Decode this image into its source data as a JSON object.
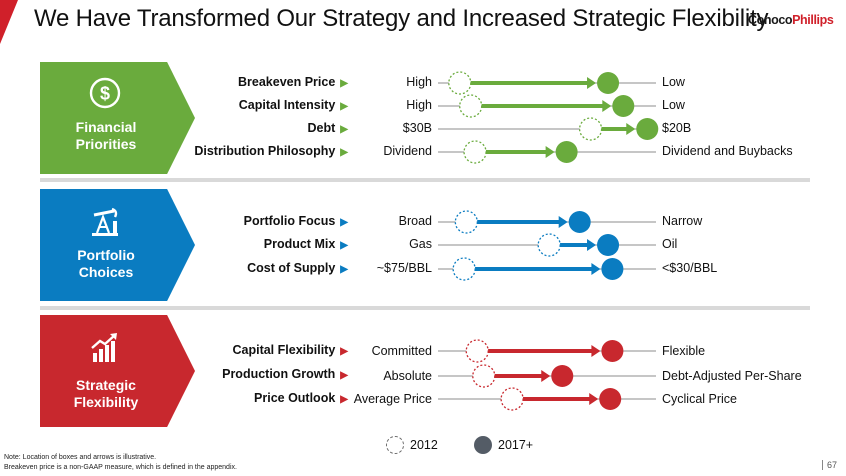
{
  "header": {
    "title": "We Have Transformed Our Strategy and Increased Strategic Flexibility",
    "logo_part1": "Conoco",
    "logo_part2": "Phillips"
  },
  "colors": {
    "green": "#6aab3d",
    "blue": "#0a7cc1",
    "red": "#c8282e",
    "brand_red": "#d0202a"
  },
  "sections": [
    {
      "label_line1": "Financial",
      "label_line2": "Priorities",
      "icon": "dollar-circle-icon",
      "rows": [
        {
          "label": "Breakeven Price",
          "from": "High",
          "to": "Low",
          "start": 0.1,
          "end": 0.78
        },
        {
          "label": "Capital Intensity",
          "from": "High",
          "to": "Low",
          "start": 0.15,
          "end": 0.85
        },
        {
          "label": "Debt",
          "from": "$30B",
          "to": "$20B",
          "start": 0.7,
          "end": 0.96
        },
        {
          "label": "Distribution Philosophy",
          "from": "Dividend",
          "to": "Dividend and Buybacks",
          "start": 0.17,
          "end": 0.59
        }
      ]
    },
    {
      "label_line1": "Portfolio",
      "label_line2": "Choices",
      "icon": "oil-pumpjack-icon",
      "rows": [
        {
          "label": "Portfolio Focus",
          "from": "Broad",
          "to": "Narrow",
          "start": 0.13,
          "end": 0.65
        },
        {
          "label": "Product Mix",
          "from": "Gas",
          "to": "Oil",
          "start": 0.51,
          "end": 0.78
        },
        {
          "label": "Cost of Supply",
          "from": "~$75/BBL",
          "to": "<$30/BBL",
          "start": 0.12,
          "end": 0.8
        }
      ]
    },
    {
      "label_line1": "Strategic",
      "label_line2": "Flexibility",
      "icon": "bar-chart-arrow-icon",
      "rows": [
        {
          "label": "Capital Flexibility",
          "from": "Committed",
          "to": "Flexible",
          "start": 0.18,
          "end": 0.8
        },
        {
          "label": "Production Growth",
          "from": "Absolute",
          "to": "Debt-Adjusted Per-Share",
          "start": 0.21,
          "end": 0.57
        },
        {
          "label": "Price Outlook",
          "from": "Average Price",
          "to": "Cyclical Price",
          "start": 0.34,
          "end": 0.79
        }
      ]
    }
  ],
  "legend": {
    "past": "2012",
    "future": "2017+"
  },
  "notes": {
    "line1": "Note: Location of boxes and arrows is illustrative.",
    "line2": "Breakeven price is a non-GAAP measure, which is defined in the appendix."
  },
  "page_number": "67"
}
